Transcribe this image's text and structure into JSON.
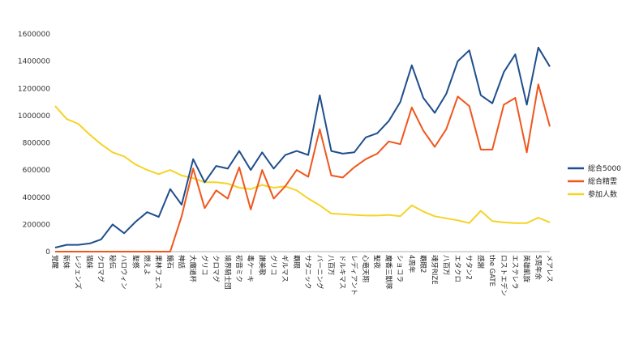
{
  "chart_data": {
    "type": "line",
    "ylim": [
      0,
      1600000
    ],
    "yticks": [
      "0",
      "200000",
      "400000",
      "600000",
      "800000",
      "1000000",
      "1200000",
      "1400000",
      "1600000"
    ],
    "grid": false,
    "legend_position": "right",
    "categories": [
      "覚醒",
      "新妹",
      "レジェンズ",
      "猫妹",
      "クロマグ",
      "秘伝",
      "ハロウィン",
      "聖祭",
      "燃えよ",
      "果林フェス",
      "鏡石",
      "神話",
      "大魔道杯",
      "グリコ",
      "クロマグ",
      "境界騎士団",
      "初音ミク",
      "毒ケーキ",
      "讃美歌",
      "グリコ",
      "ギルマス",
      "覇眼",
      "サタニック",
      "バーニング",
      "八百万",
      "ドルキマス",
      "レディアント",
      "心竜天翔",
      "聖夜",
      "魔香三獣隊",
      "ショコラ",
      "4周年",
      "覇眼2",
      "魂牙RIZE",
      "八百万",
      "エタクロ",
      "サタン2",
      "感謝",
      "the GATE",
      "ロストエデン",
      "エステレラ",
      "英雄凱旋",
      "5周年余",
      "メアレス"
    ],
    "series": [
      {
        "name": "総合5000",
        "color": "#1f4e8c",
        "values": [
          30000,
          50000,
          50000,
          60000,
          90000,
          200000,
          135000,
          220000,
          290000,
          255000,
          460000,
          345000,
          680000,
          510000,
          630000,
          610000,
          740000,
          600000,
          730000,
          610000,
          710000,
          740000,
          710000,
          1150000,
          740000,
          720000,
          730000,
          840000,
          870000,
          960000,
          1100000,
          1370000,
          1130000,
          1020000,
          1160000,
          1400000,
          1480000,
          1150000,
          1090000,
          1320000,
          1450000,
          1080000,
          1500000,
          1360000
        ]
      },
      {
        "name": "総合精霊",
        "color": "#f0561c",
        "values": [
          0,
          0,
          0,
          0,
          0,
          0,
          0,
          0,
          0,
          0,
          0,
          260000,
          610000,
          320000,
          450000,
          390000,
          620000,
          310000,
          600000,
          390000,
          480000,
          600000,
          550000,
          900000,
          560000,
          545000,
          620000,
          680000,
          720000,
          810000,
          790000,
          1060000,
          890000,
          770000,
          900000,
          1140000,
          1070000,
          750000,
          750000,
          1080000,
          1130000,
          730000,
          1230000,
          920000
        ]
      },
      {
        "name": "参加人数",
        "color": "#f5d327",
        "values": [
          1070000,
          975000,
          940000,
          860000,
          790000,
          730000,
          700000,
          640000,
          600000,
          570000,
          600000,
          560000,
          540000,
          510000,
          510000,
          500000,
          470000,
          460000,
          490000,
          470000,
          480000,
          450000,
          390000,
          340000,
          280000,
          275000,
          270000,
          265000,
          265000,
          270000,
          260000,
          340000,
          295000,
          260000,
          245000,
          230000,
          210000,
          300000,
          225000,
          215000,
          210000,
          210000,
          250000,
          215000
        ]
      }
    ]
  }
}
